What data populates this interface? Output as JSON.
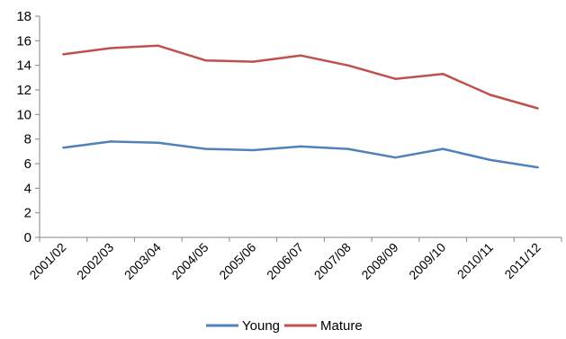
{
  "chart_data": {
    "type": "line",
    "title": "",
    "xlabel": "",
    "ylabel": "",
    "categories": [
      "2001/02",
      "2002/03",
      "2003/04",
      "2004/05",
      "2005/06",
      "2006/07",
      "2007/08",
      "2008/09",
      "2009/10",
      "2010/11",
      "2011/12"
    ],
    "ylim": [
      0,
      18
    ],
    "yticks": [
      0,
      2,
      4,
      6,
      8,
      10,
      12,
      14,
      16,
      18
    ],
    "grid": false,
    "legend_position": "bottom",
    "series": [
      {
        "name": "Young",
        "color": "#4f81bd",
        "values": [
          7.3,
          7.8,
          7.7,
          7.2,
          7.1,
          7.4,
          7.2,
          6.5,
          7.2,
          6.3,
          5.7
        ]
      },
      {
        "name": "Mature",
        "color": "#c0504d",
        "values": [
          14.9,
          15.4,
          15.6,
          14.4,
          14.3,
          14.8,
          14.0,
          12.9,
          13.3,
          11.6,
          10.5
        ]
      }
    ]
  }
}
